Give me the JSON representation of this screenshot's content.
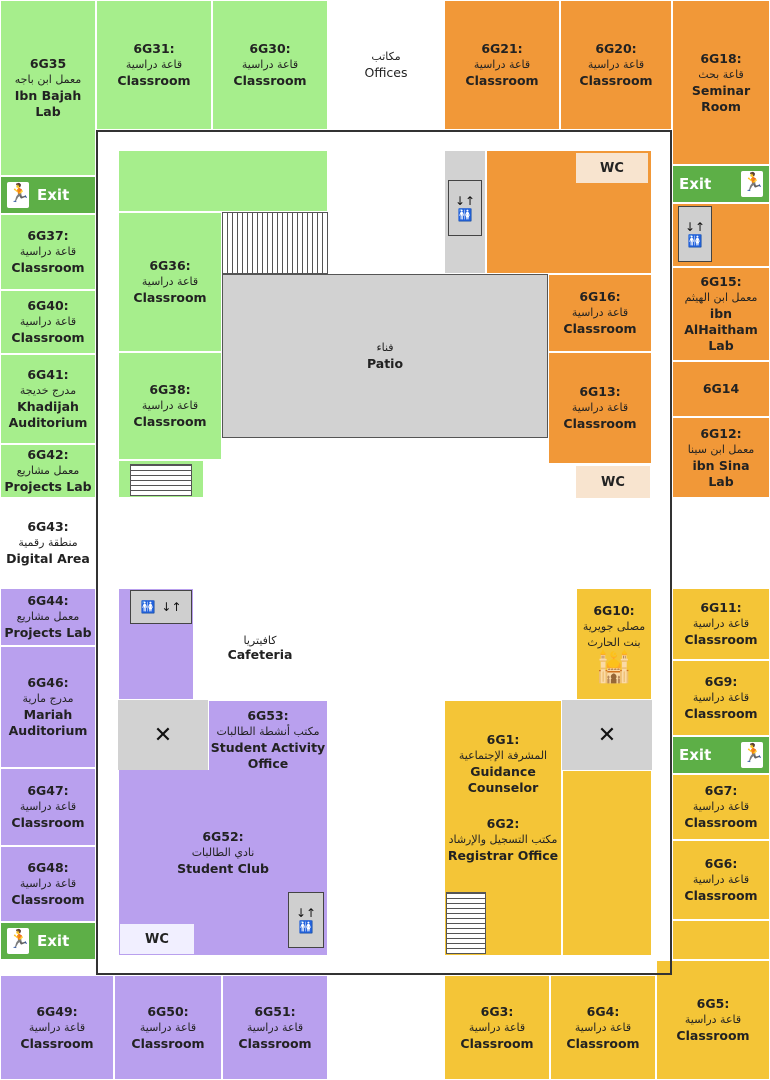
{
  "rooms": {
    "g35": {
      "code": "6G35",
      "ar": "معمل ابن باجه",
      "en": "Ibn Bajah Lab"
    },
    "g31": {
      "code": "6G31:",
      "ar": "قاعة دراسية",
      "en": "Classroom"
    },
    "g30": {
      "code": "6G30:",
      "ar": "قاعة دراسية",
      "en": "Classroom"
    },
    "offices": {
      "ar": "مكاتب",
      "en": "Offices"
    },
    "g21": {
      "code": "6G21:",
      "ar": "قاعة دراسية",
      "en": "Classroom"
    },
    "g20": {
      "code": "6G20:",
      "ar": "قاعة دراسية",
      "en": "Classroom"
    },
    "g18": {
      "code": "6G18:",
      "ar": "قاعة بحث",
      "en": "Seminar Room"
    },
    "g37": {
      "code": "6G37:",
      "ar": "قاعة دراسية",
      "en": "Classroom"
    },
    "g40": {
      "code": "6G40:",
      "ar": "قاعة دراسية",
      "en": "Classroom"
    },
    "g41": {
      "code": "6G41:",
      "ar": "مدرج خديجة",
      "en": "Khadijah Auditorium"
    },
    "g42": {
      "code": "6G42:",
      "ar": "معمل مشاريع",
      "en": "Projects Lab"
    },
    "g43": {
      "code": "6G43:",
      "ar": "منطقة رقمية",
      "en": "Digital Area"
    },
    "g44": {
      "code": "6G44:",
      "ar": "معمل مشاريع",
      "en": "Projects Lab"
    },
    "g46": {
      "code": "6G46:",
      "ar": "مدرج مارية",
      "en": "Mariah Auditorium"
    },
    "g47": {
      "code": "6G47:",
      "ar": "قاعة دراسية",
      "en": "Classroom"
    },
    "g48": {
      "code": "6G48:",
      "ar": "قاعة دراسية",
      "en": "Classroom"
    },
    "g49": {
      "code": "6G49:",
      "ar": "قاعة دراسية",
      "en": "Classroom"
    },
    "g50": {
      "code": "6G50:",
      "ar": "قاعة دراسية",
      "en": "Classroom"
    },
    "g51": {
      "code": "6G51:",
      "ar": "قاعة دراسية",
      "en": "Classroom"
    },
    "g36": {
      "code": "6G36:",
      "ar": "قاعة دراسية",
      "en": "Classroom"
    },
    "g38": {
      "code": "6G38:",
      "ar": "قاعة دراسية",
      "en": "Classroom"
    },
    "patio": {
      "ar": "فناء",
      "en": "Patio"
    },
    "g16": {
      "code": "6G16:",
      "ar": "قاعة دراسية",
      "en": "Classroom"
    },
    "g13": {
      "code": "6G13:",
      "ar": "قاعة دراسية",
      "en": "Classroom"
    },
    "g15": {
      "code": "6G15:",
      "ar": "معمل ابن الهيثم",
      "en": "ibn AlHaitham Lab"
    },
    "g14": {
      "code": "6G14"
    },
    "g12": {
      "code": "6G12:",
      "ar": "معمل ابن سينا",
      "en": "ibn Sina Lab"
    },
    "cafeteria": {
      "ar": "كافيتريا",
      "en": "Cafeteria"
    },
    "g53": {
      "code": "6G53:",
      "ar": "مكتب أنشطة الطالبات",
      "en": "Student Activity Office"
    },
    "g52": {
      "code": "6G52:",
      "ar": "نادي الطالبات",
      "en": "Student Club"
    },
    "g10": {
      "code": "6G10:",
      "ar": "مصلى جويرية بنت الحارث"
    },
    "g1": {
      "code": "6G1:",
      "ar": "المشرفة الإجتماعية",
      "en": "Guidance Counselor"
    },
    "g2": {
      "code": "6G2:",
      "ar": "مكتب التسجيل والإرشاد",
      "en": "Registrar Office"
    },
    "g11": {
      "code": "6G11:",
      "ar": "قاعة دراسية",
      "en": "Classroom"
    },
    "g9": {
      "code": "6G9:",
      "ar": "قاعة دراسية",
      "en": "Classroom"
    },
    "g7": {
      "code": "6G7:",
      "ar": "قاعة دراسية",
      "en": "Classroom"
    },
    "g6": {
      "code": "6G6:",
      "ar": "قاعة دراسية",
      "en": "Classroom"
    },
    "g3": {
      "code": "6G3:",
      "ar": "قاعة دراسية",
      "en": "Classroom"
    },
    "g4": {
      "code": "6G4:",
      "ar": "قاعة دراسية",
      "en": "Classroom"
    },
    "g5": {
      "code": "6G5:",
      "ar": "قاعة دراسية",
      "en": "Classroom"
    }
  },
  "labels": {
    "exit": "Exit",
    "wc": "WC",
    "lift_arrows": "↓↑",
    "restroom_icon": "🚻",
    "closed_mark": "✕"
  },
  "colors": {
    "green": "#a6ee8c",
    "orange": "#f19838",
    "purple": "#b9a0ee",
    "yellow": "#f4c537",
    "grey": "#d2d2d2",
    "exit": "#5daf47"
  }
}
